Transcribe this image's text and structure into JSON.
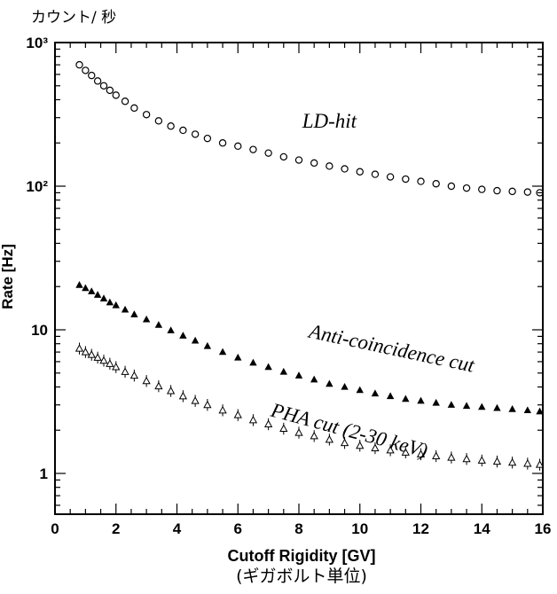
{
  "annotations": {
    "unit_note_top": "カウント/ 秒",
    "unit_note_bottom": "(ギガボルト単位)"
  },
  "chart_data": {
    "type": "scatter",
    "title": "",
    "xlabel": "Cutoff Rigidity [GV]",
    "ylabel": "Rate [Hz]",
    "xlim": [
      0,
      16
    ],
    "ylim": [
      0.52,
      1000
    ],
    "y_scale": "log",
    "grid": false,
    "x_ticks": [
      0,
      2,
      4,
      6,
      8,
      10,
      12,
      14,
      16
    ],
    "x_tick_labels": [
      "0",
      "2",
      "4",
      "6",
      "8",
      "10",
      "12",
      "14",
      "16"
    ],
    "y_ticks": [
      1,
      10,
      100,
      1000
    ],
    "y_tick_labels": [
      "1",
      "10",
      "10²",
      "10³"
    ],
    "series": [
      {
        "name": "LD-hit",
        "marker": "open-circle",
        "color": "#000000",
        "x": [
          0.8,
          1.0,
          1.2,
          1.4,
          1.6,
          1.8,
          2.0,
          2.3,
          2.6,
          3.0,
          3.4,
          3.8,
          4.2,
          4.6,
          5.0,
          5.5,
          6.0,
          6.5,
          7.0,
          7.5,
          8.0,
          8.5,
          9.0,
          9.5,
          10.0,
          10.5,
          11.0,
          11.5,
          12.0,
          12.5,
          13.0,
          13.5,
          14.0,
          14.5,
          15.0,
          15.5,
          15.9
        ],
        "y": [
          700,
          640,
          590,
          540,
          500,
          465,
          430,
          390,
          350,
          315,
          285,
          262,
          245,
          230,
          215,
          200,
          190,
          180,
          170,
          160,
          152,
          145,
          138,
          132,
          126,
          121,
          116,
          112,
          108,
          104,
          100,
          97,
          95,
          93,
          92,
          91,
          90
        ]
      },
      {
        "name": "Anti-coincidence cut",
        "marker": "filled-triangle",
        "color": "#000000",
        "x": [
          0.8,
          1.0,
          1.2,
          1.4,
          1.6,
          1.8,
          2.0,
          2.3,
          2.6,
          3.0,
          3.4,
          3.8,
          4.2,
          4.6,
          5.0,
          5.5,
          6.0,
          6.5,
          7.0,
          7.5,
          8.0,
          8.5,
          9.0,
          9.5,
          10.0,
          10.5,
          11.0,
          11.5,
          12.0,
          12.5,
          13.0,
          13.5,
          14.0,
          14.5,
          15.0,
          15.5,
          15.9
        ],
        "y": [
          20.5,
          19.5,
          18.5,
          17.5,
          16.5,
          15.5,
          14.8,
          13.8,
          12.8,
          11.8,
          10.8,
          9.9,
          9.1,
          8.4,
          7.7,
          7.0,
          6.4,
          5.9,
          5.5,
          5.1,
          4.8,
          4.5,
          4.2,
          4.0,
          3.8,
          3.6,
          3.45,
          3.3,
          3.2,
          3.1,
          3.0,
          2.95,
          2.9,
          2.85,
          2.8,
          2.75,
          2.7
        ]
      },
      {
        "name": "PHA cut (2-30 keV)",
        "marker": "open-triangle-errorbar",
        "color": "#000000",
        "x": [
          0.8,
          1.0,
          1.2,
          1.4,
          1.6,
          1.8,
          2.0,
          2.3,
          2.6,
          3.0,
          3.4,
          3.8,
          4.2,
          4.6,
          5.0,
          5.5,
          6.0,
          6.5,
          7.0,
          7.5,
          8.0,
          8.5,
          9.0,
          9.5,
          10.0,
          10.5,
          11.0,
          11.5,
          12.0,
          12.5,
          13.0,
          13.5,
          14.0,
          14.5,
          15.0,
          15.5,
          15.9
        ],
        "y": [
          7.4,
          7.0,
          6.7,
          6.4,
          6.1,
          5.8,
          5.5,
          5.1,
          4.8,
          4.4,
          4.05,
          3.75,
          3.45,
          3.2,
          3.0,
          2.75,
          2.55,
          2.35,
          2.2,
          2.05,
          1.92,
          1.82,
          1.72,
          1.63,
          1.56,
          1.5,
          1.45,
          1.4,
          1.36,
          1.32,
          1.29,
          1.26,
          1.23,
          1.21,
          1.19,
          1.17,
          1.15
        ]
      }
    ],
    "annotations": [
      {
        "text": "LD-hit",
        "x": 9.0,
        "y": 255
      },
      {
        "text": "Anti-coincidence cut",
        "x": 11.0,
        "y": 6.7
      },
      {
        "text": "PHA cut (2-30 keV)",
        "x": 9.6,
        "y": 1.8
      }
    ]
  }
}
